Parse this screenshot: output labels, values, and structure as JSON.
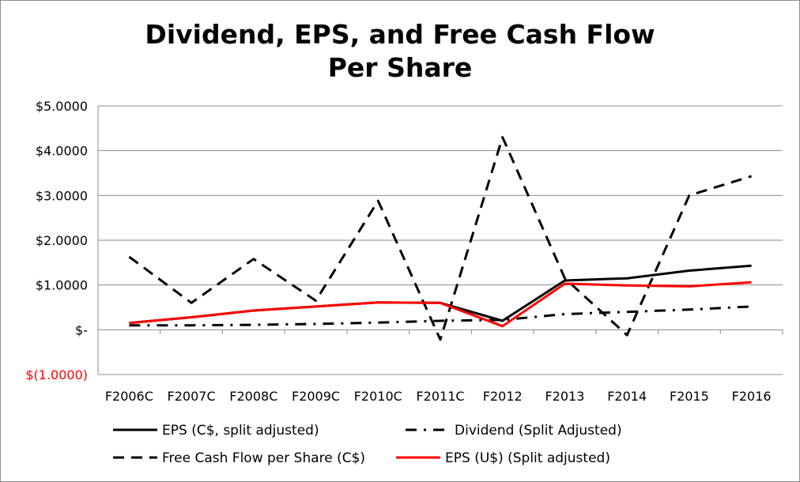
{
  "chart_data": {
    "type": "line",
    "title_lines": [
      "Dividend, EPS, and Free Cash Flow",
      "Per Share"
    ],
    "categories": [
      "F2006C",
      "F2007C",
      "F2008C",
      "F2009C",
      "F2010C",
      "F2011C",
      "F2012",
      "F2013",
      "F2014",
      "F2015",
      "F2016"
    ],
    "y_ticks": [
      {
        "value": 5,
        "label": "$5.0000",
        "color": "#000000"
      },
      {
        "value": 4,
        "label": "$4.0000",
        "color": "#000000"
      },
      {
        "value": 3,
        "label": "$3.0000",
        "color": "#000000"
      },
      {
        "value": 2,
        "label": "$2.0000",
        "color": "#000000"
      },
      {
        "value": 1,
        "label": "$1.0000",
        "color": "#000000"
      },
      {
        "value": 0,
        "label": "$-",
        "color": "#000000"
      },
      {
        "value": -1,
        "label": "$(1.0000)",
        "color": "#ff0000"
      }
    ],
    "ylim": [
      -1,
      5
    ],
    "grid": true,
    "legend_position": "bottom",
    "series": [
      {
        "name": "EPS (C$, split adjusted)",
        "color": "#000000",
        "dash": "solid",
        "values": [
          0.15,
          0.28,
          0.43,
          0.52,
          0.61,
          0.6,
          0.2,
          1.1,
          1.15,
          1.32,
          1.43
        ]
      },
      {
        "name": "Dividend (Split Adjusted)",
        "color": "#000000",
        "dash": "dashdot",
        "values": [
          0.1,
          0.1,
          0.11,
          0.13,
          0.16,
          0.2,
          0.22,
          0.35,
          0.4,
          0.45,
          0.52
        ]
      },
      {
        "name": "Free Cash Flow per Share (C$)",
        "color": "#000000",
        "dash": "dash",
        "values": [
          1.63,
          0.6,
          1.58,
          0.65,
          2.88,
          -0.22,
          4.3,
          1.15,
          -0.12,
          3.0,
          3.43
        ]
      },
      {
        "name": "EPS (U$) (Split adjusted)",
        "color": "#ff0000",
        "dash": "solid",
        "values": [
          0.15,
          0.28,
          0.43,
          0.52,
          0.61,
          0.6,
          0.08,
          1.03,
          0.99,
          0.97,
          1.06
        ]
      }
    ]
  }
}
